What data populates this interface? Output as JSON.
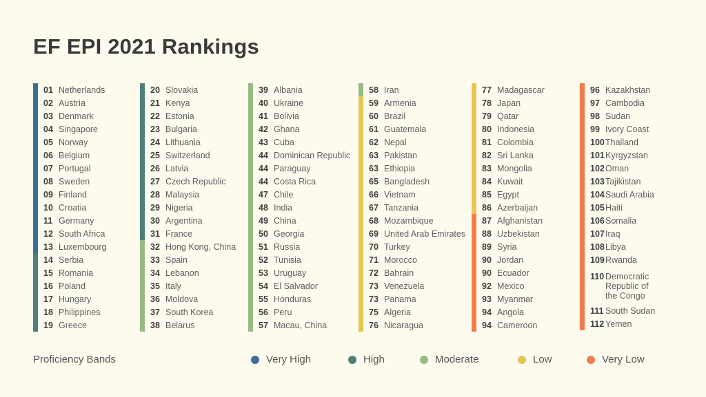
{
  "title": "EF EPI 2021 Rankings",
  "bands": {
    "very_high": {
      "label": "Very High",
      "color": "#3d6e96"
    },
    "high": {
      "label": "High",
      "color": "#4e8077"
    },
    "moderate": {
      "label": "Moderate",
      "color": "#97bb82"
    },
    "low": {
      "label": "Low",
      "color": "#e6c653"
    },
    "very_low": {
      "label": "Very Low",
      "color": "#f47c4c"
    }
  },
  "legend": {
    "title": "Proficiency Bands",
    "items": [
      {
        "band": "very_high",
        "label": "Very High"
      },
      {
        "band": "high",
        "label": "High"
      },
      {
        "band": "moderate",
        "label": "Moderate"
      },
      {
        "band": "low",
        "label": "Low"
      },
      {
        "band": "very_low",
        "label": "Very Low"
      }
    ]
  },
  "columns": [
    [
      {
        "rank": "01",
        "country": "Netherlands",
        "band": "very_high"
      },
      {
        "rank": "02",
        "country": "Austria",
        "band": "very_high"
      },
      {
        "rank": "03",
        "country": "Denmark",
        "band": "very_high"
      },
      {
        "rank": "04",
        "country": "Singapore",
        "band": "very_high"
      },
      {
        "rank": "05",
        "country": "Norway",
        "band": "very_high"
      },
      {
        "rank": "06",
        "country": "Belgium",
        "band": "very_high"
      },
      {
        "rank": "07",
        "country": "Portugal",
        "band": "very_high"
      },
      {
        "rank": "08",
        "country": "Sweden",
        "band": "very_high"
      },
      {
        "rank": "09",
        "country": "Finland",
        "band": "very_high"
      },
      {
        "rank": "10",
        "country": "Croatia",
        "band": "very_high"
      },
      {
        "rank": "11",
        "country": "Germany",
        "band": "very_high"
      },
      {
        "rank": "12",
        "country": "South Africa",
        "band": "very_high"
      },
      {
        "rank": "13",
        "country": "Luxembourg",
        "band": "very_high"
      },
      {
        "rank": "14",
        "country": "Serbia",
        "band": "high"
      },
      {
        "rank": "15",
        "country": "Romania",
        "band": "high"
      },
      {
        "rank": "16",
        "country": "Poland",
        "band": "high"
      },
      {
        "rank": "17",
        "country": "Hungary",
        "band": "high"
      },
      {
        "rank": "18",
        "country": "Philippines",
        "band": "high"
      },
      {
        "rank": "19",
        "country": "Greece",
        "band": "high"
      }
    ],
    [
      {
        "rank": "20",
        "country": "Slovakia",
        "band": "high"
      },
      {
        "rank": "21",
        "country": "Kenya",
        "band": "high"
      },
      {
        "rank": "22",
        "country": "Estonia",
        "band": "high"
      },
      {
        "rank": "23",
        "country": "Bulgaria",
        "band": "high"
      },
      {
        "rank": "24",
        "country": "Lithuania",
        "band": "high"
      },
      {
        "rank": "25",
        "country": "Switzerland",
        "band": "high"
      },
      {
        "rank": "26",
        "country": "Latvia",
        "band": "high"
      },
      {
        "rank": "27",
        "country": "Czech Republic",
        "band": "high"
      },
      {
        "rank": "28",
        "country": "Malaysia",
        "band": "high"
      },
      {
        "rank": "29",
        "country": "Nigeria",
        "band": "high"
      },
      {
        "rank": "30",
        "country": "Argentina",
        "band": "high"
      },
      {
        "rank": "31",
        "country": "France",
        "band": "high"
      },
      {
        "rank": "32",
        "country": "Hong Kong, China",
        "band": "moderate"
      },
      {
        "rank": "33",
        "country": "Spain",
        "band": "moderate"
      },
      {
        "rank": "34",
        "country": "Lebanon",
        "band": "moderate"
      },
      {
        "rank": "35",
        "country": "Italy",
        "band": "moderate"
      },
      {
        "rank": "36",
        "country": "Moldova",
        "band": "moderate"
      },
      {
        "rank": "37",
        "country": "South Korea",
        "band": "moderate"
      },
      {
        "rank": "38",
        "country": "Belarus",
        "band": "moderate"
      }
    ],
    [
      {
        "rank": "39",
        "country": "Albania",
        "band": "moderate"
      },
      {
        "rank": "40",
        "country": "Ukraine",
        "band": "moderate"
      },
      {
        "rank": "41",
        "country": "Bolivia",
        "band": "moderate"
      },
      {
        "rank": "42",
        "country": "Ghana",
        "band": "moderate"
      },
      {
        "rank": "43",
        "country": "Cuba",
        "band": "moderate"
      },
      {
        "rank": "44",
        "country": "Dominican Republic",
        "band": "moderate"
      },
      {
        "rank": "44",
        "country": "Paraguay",
        "band": "moderate"
      },
      {
        "rank": "44",
        "country": "Costa Rica",
        "band": "moderate"
      },
      {
        "rank": "47",
        "country": "Chile",
        "band": "moderate"
      },
      {
        "rank": "48",
        "country": "India",
        "band": "moderate"
      },
      {
        "rank": "49",
        "country": "China",
        "band": "moderate"
      },
      {
        "rank": "50",
        "country": "Georgia",
        "band": "moderate"
      },
      {
        "rank": "51",
        "country": "Russia",
        "band": "moderate"
      },
      {
        "rank": "52",
        "country": "Tunisia",
        "band": "moderate"
      },
      {
        "rank": "53",
        "country": "Uruguay",
        "band": "moderate"
      },
      {
        "rank": "54",
        "country": "El Salvador",
        "band": "moderate"
      },
      {
        "rank": "55",
        "country": "Honduras",
        "band": "moderate"
      },
      {
        "rank": "56",
        "country": "Peru",
        "band": "moderate"
      },
      {
        "rank": "57",
        "country": "Macau, China",
        "band": "moderate"
      }
    ],
    [
      {
        "rank": "58",
        "country": "Iran",
        "band": "moderate"
      },
      {
        "rank": "59",
        "country": "Armenia",
        "band": "low"
      },
      {
        "rank": "60",
        "country": "Brazil",
        "band": "low"
      },
      {
        "rank": "61",
        "country": "Guatemala",
        "band": "low"
      },
      {
        "rank": "62",
        "country": "Nepal",
        "band": "low"
      },
      {
        "rank": "63",
        "country": "Pakistan",
        "band": "low"
      },
      {
        "rank": "63",
        "country": "Ethiopia",
        "band": "low"
      },
      {
        "rank": "65",
        "country": "Bangladesh",
        "band": "low"
      },
      {
        "rank": "66",
        "country": "Vietnam",
        "band": "low"
      },
      {
        "rank": "67",
        "country": "Tanzania",
        "band": "low"
      },
      {
        "rank": "68",
        "country": "Mozambique",
        "band": "low"
      },
      {
        "rank": "69",
        "country": "United Arab Emirates",
        "band": "low"
      },
      {
        "rank": "70",
        "country": "Turkey",
        "band": "low"
      },
      {
        "rank": "71",
        "country": "Morocco",
        "band": "low"
      },
      {
        "rank": "72",
        "country": "Bahrain",
        "band": "low"
      },
      {
        "rank": "73",
        "country": "Venezuela",
        "band": "low"
      },
      {
        "rank": "73",
        "country": "Panama",
        "band": "low"
      },
      {
        "rank": "75",
        "country": "Algeria",
        "band": "low"
      },
      {
        "rank": "76",
        "country": "Nicaragua",
        "band": "low"
      }
    ],
    [
      {
        "rank": "77",
        "country": "Madagascar",
        "band": "low"
      },
      {
        "rank": "78",
        "country": "Japan",
        "band": "low"
      },
      {
        "rank": "79",
        "country": "Qatar",
        "band": "low"
      },
      {
        "rank": "80",
        "country": "Indonesia",
        "band": "low"
      },
      {
        "rank": "81",
        "country": "Colombia",
        "band": "low"
      },
      {
        "rank": "82",
        "country": "Sri Lanka",
        "band": "low"
      },
      {
        "rank": "83",
        "country": "Mongolia",
        "band": "low"
      },
      {
        "rank": "84",
        "country": "Kuwait",
        "band": "low"
      },
      {
        "rank": "85",
        "country": "Egypt",
        "band": "low"
      },
      {
        "rank": "86",
        "country": "Azerbaijan",
        "band": "low"
      },
      {
        "rank": "87",
        "country": "Afghanistan",
        "band": "very_low"
      },
      {
        "rank": "88",
        "country": "Uzbekistan",
        "band": "very_low"
      },
      {
        "rank": "89",
        "country": "Syria",
        "band": "very_low"
      },
      {
        "rank": "90",
        "country": "Jordan",
        "band": "very_low"
      },
      {
        "rank": "90",
        "country": "Ecuador",
        "band": "very_low"
      },
      {
        "rank": "92",
        "country": "Mexico",
        "band": "very_low"
      },
      {
        "rank": "93",
        "country": "Myanmar",
        "band": "very_low"
      },
      {
        "rank": "94",
        "country": "Angola",
        "band": "very_low"
      },
      {
        "rank": "94",
        "country": "Cameroon",
        "band": "very_low"
      }
    ],
    [
      {
        "rank": "96",
        "country": "Kazakhstan",
        "band": "very_low"
      },
      {
        "rank": "97",
        "country": "Cambodia",
        "band": "very_low"
      },
      {
        "rank": "98",
        "country": "Sudan",
        "band": "very_low"
      },
      {
        "rank": "99",
        "country": "Ivory Coast",
        "band": "very_low"
      },
      {
        "rank": "100",
        "country": "Thailand",
        "band": "very_low"
      },
      {
        "rank": "101",
        "country": "Kyrgyzstan",
        "band": "very_low"
      },
      {
        "rank": "102",
        "country": "Oman",
        "band": "very_low"
      },
      {
        "rank": "103",
        "country": "Tajikistan",
        "band": "very_low"
      },
      {
        "rank": "104",
        "country": "Saudi Arabia",
        "band": "very_low"
      },
      {
        "rank": "105",
        "country": "Haiti",
        "band": "very_low"
      },
      {
        "rank": "106",
        "country": "Somalia",
        "band": "very_low"
      },
      {
        "rank": "107",
        "country": "Iraq",
        "band": "very_low"
      },
      {
        "rank": "108",
        "country": "Libya",
        "band": "very_low"
      },
      {
        "rank": "109",
        "country": "Rwanda",
        "band": "very_low"
      },
      {
        "rank": "110",
        "country": "Democratic Republic of the Congo",
        "band": "very_low"
      },
      {
        "rank": "111",
        "country": "South Sudan",
        "band": "very_low"
      },
      {
        "rank": "112",
        "country": "Yemen",
        "band": "very_low"
      }
    ]
  ]
}
